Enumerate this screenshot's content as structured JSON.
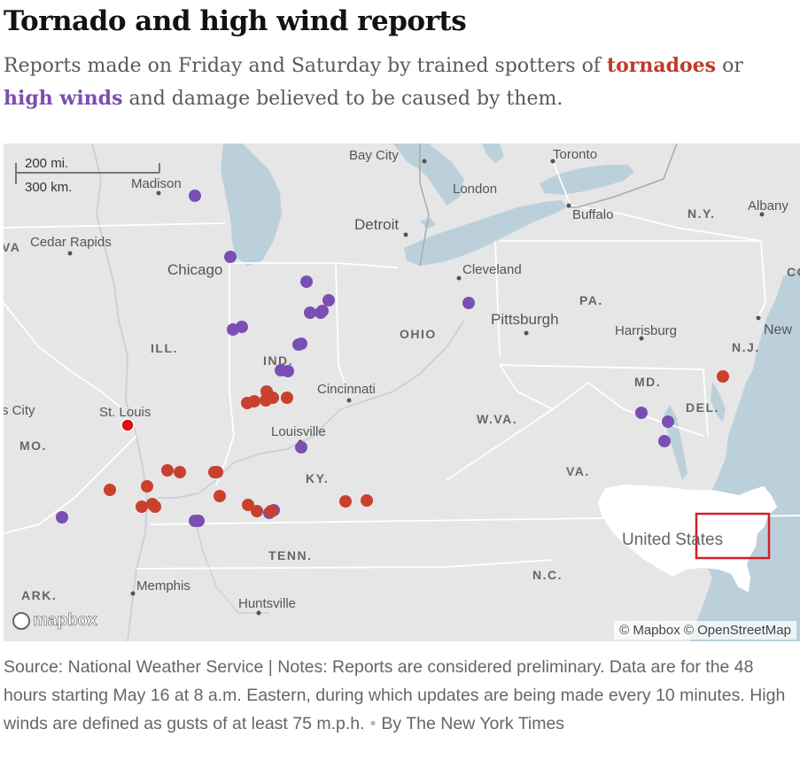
{
  "header": {
    "title": "Tornado and high wind reports",
    "subtitle_pre": "Reports made on Friday and Saturday by trained spotters of ",
    "subtitle_tornadoes": "tornadoes",
    "subtitle_mid": " or ",
    "subtitle_winds": "high winds",
    "subtitle_post": " and damage believed to be caused by them."
  },
  "colors": {
    "tornado": "#c9402f",
    "wind": "#7a4fb3",
    "tornado_highlight": "#e01010",
    "water": "#bcd0dc",
    "land": "#e6e6e6",
    "inset_box": "#d0202a"
  },
  "map": {
    "scale": {
      "miles": "200 mi.",
      "km": "300 km."
    },
    "cities": {
      "madison": "Madison",
      "bay_city": "Bay City",
      "toronto": "Toronto",
      "london": "London",
      "cedar_rapids": "Cedar Rapids",
      "detroit": "Detroit",
      "buffalo": "Buffalo",
      "albany": "Albany",
      "chicago": "Chicago",
      "cleveland": "Cleveland",
      "pittsburgh": "Pittsburgh",
      "harrisburg": "Harrisburg",
      "new_york": "New",
      "cincinnati": "Cincinnati",
      "st_louis": "St. Louis",
      "louisville": "Louisville",
      "memphis": "Memphis",
      "huntsville": "Huntsville",
      "kansas_city": "s City"
    },
    "states": {
      "ia": "VA",
      "ill": "ILL.",
      "ind": "IND.",
      "ohio": "OHIO",
      "pa": "PA.",
      "ny": "N.Y.",
      "nj": "N.J.",
      "md": "MD.",
      "del": "DEL.",
      "wva": "W.VA.",
      "va": "VA.",
      "mo": "MO.",
      "ky": "KY.",
      "tenn": "TENN.",
      "nc": "N.C.",
      "ark": "ARK.",
      "conn": "CO"
    },
    "inset_label": "United States",
    "attribution": "© Mapbox © OpenStreetMap",
    "logo": "mapbox"
  },
  "reports": {
    "tornadoes": [
      {
        "city": "near St. Louis",
        "highlight": true
      },
      {
        "city": "southern Illinois 1"
      },
      {
        "city": "southern Illinois 2"
      },
      {
        "city": "southern Illinois 3"
      },
      {
        "city": "southern Illinois 4"
      },
      {
        "city": "southern Illinois 5"
      },
      {
        "city": "southern Illinois 6"
      },
      {
        "city": "southern Illinois 7"
      },
      {
        "city": "southern Illinois 8"
      },
      {
        "city": "Indiana 1"
      },
      {
        "city": "Indiana 2"
      },
      {
        "city": "Indiana 3"
      },
      {
        "city": "Indiana 4"
      },
      {
        "city": "Indiana 5"
      },
      {
        "city": "Indiana 6"
      },
      {
        "city": "Indiana 7"
      },
      {
        "city": "Kentucky 1"
      },
      {
        "city": "Kentucky 2"
      },
      {
        "city": "Kentucky 3"
      },
      {
        "city": "Kentucky 4"
      },
      {
        "city": "Kentucky 5"
      },
      {
        "city": "Kentucky 6"
      },
      {
        "city": "Kentucky 7"
      },
      {
        "city": "New Jersey"
      }
    ],
    "winds": [
      {
        "city": "Wisconsin"
      },
      {
        "city": "Chicago"
      },
      {
        "city": "Indiana 1"
      },
      {
        "city": "Indiana 2"
      },
      {
        "city": "Indiana 3"
      },
      {
        "city": "Indiana 4"
      },
      {
        "city": "Indiana 5"
      },
      {
        "city": "Indiana 6"
      },
      {
        "city": "Indiana 7"
      },
      {
        "city": "Indiana 8"
      },
      {
        "city": "Indiana 9"
      },
      {
        "city": "Indiana 10"
      },
      {
        "city": "Indiana 11"
      },
      {
        "city": "Ohio"
      },
      {
        "city": "Louisville"
      },
      {
        "city": "Kentucky 1"
      },
      {
        "city": "Kentucky 2"
      },
      {
        "city": "Kentucky 3"
      },
      {
        "city": "Kentucky 4"
      },
      {
        "city": "Missouri"
      },
      {
        "city": "Maryland 1"
      },
      {
        "city": "Maryland 2"
      },
      {
        "city": "Maryland 3"
      }
    ]
  },
  "footer": {
    "source": "Source: National Weather Service | Notes: Reports are considered preliminary. Data are for the 48 hours starting May 16 at 8 a.m. Eastern, during which updates are being made every 10 minutes. High winds are defined as gusts of at least 75 m.p.h.",
    "byline": "By The New York Times"
  }
}
